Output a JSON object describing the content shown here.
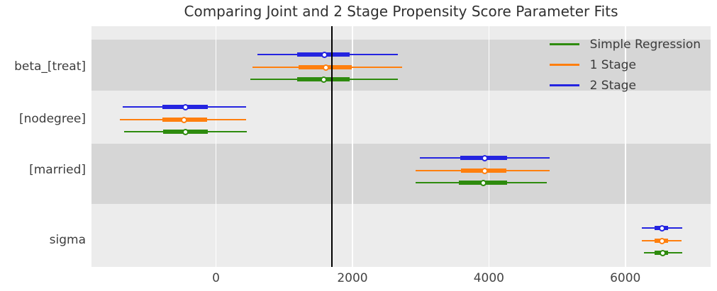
{
  "title": "Comparing Joint and 2 Stage Propensity Score Parameter Fits",
  "legend": [
    {
      "label": "Simple Regression",
      "color": "#2e8b0e"
    },
    {
      "label": "1 Stage",
      "color": "#ff7f0e"
    },
    {
      "label": "2 Stage",
      "color": "#2424e0"
    }
  ],
  "colors": {
    "plot_bg": "#ececec",
    "band_dark": "#d6d6d6",
    "gridline": "#ffffff",
    "reference_line": "#000000"
  },
  "chart_data": {
    "type": "forest",
    "subtype": "point estimates with 50% (thick) and 94% (thin) credible intervals",
    "title": "Comparing Joint and 2 Stage Propensity Score Parameter Fits",
    "xlabel": "",
    "ylabel": "",
    "xlim": [
      -1825,
      7250
    ],
    "x_ticks": [
      0,
      2000,
      4000,
      6000
    ],
    "reference_line_x": 1700,
    "grid": "white vertical gridlines over alternating gray bands",
    "legend_position": "upper right",
    "series_order_top_to_bottom": [
      "2 Stage",
      "1 Stage",
      "Simple Regression"
    ],
    "parameters": [
      {
        "name": "beta_[treat]",
        "band": "dark",
        "estimates": [
          {
            "series": "2 Stage",
            "point": 1590,
            "interval_thick": [
              1190,
              1960
            ],
            "interval_thin": [
              610,
              2670
            ]
          },
          {
            "series": "1 Stage",
            "point": 1610,
            "interval_thick": [
              1210,
              1990
            ],
            "interval_thin": [
              530,
              2730
            ]
          },
          {
            "series": "Simple Regression",
            "point": 1580,
            "interval_thick": [
              1190,
              1960
            ],
            "interval_thin": [
              500,
              2670
            ]
          }
        ]
      },
      {
        "name": "[nodegree]",
        "band": "light",
        "estimates": [
          {
            "series": "2 Stage",
            "point": -450,
            "interval_thick": [
              -790,
              -120
            ],
            "interval_thin": [
              -1370,
              440
            ]
          },
          {
            "series": "1 Stage",
            "point": -470,
            "interval_thick": [
              -790,
              -130
            ],
            "interval_thin": [
              -1410,
              440
            ]
          },
          {
            "series": "Simple Regression",
            "point": -450,
            "interval_thick": [
              -780,
              -120
            ],
            "interval_thin": [
              -1350,
              450
            ]
          }
        ]
      },
      {
        "name": "[married]",
        "band": "dark",
        "estimates": [
          {
            "series": "2 Stage",
            "point": 3940,
            "interval_thick": [
              3580,
              4270
            ],
            "interval_thin": [
              2990,
              4890
            ]
          },
          {
            "series": "1 Stage",
            "point": 3940,
            "interval_thick": [
              3590,
              4260
            ],
            "interval_thin": [
              2930,
              4890
            ]
          },
          {
            "series": "Simple Regression",
            "point": 3915,
            "interval_thick": [
              3560,
              4270
            ],
            "interval_thin": [
              2930,
              4850
            ]
          }
        ]
      },
      {
        "name": "sigma",
        "band": "light",
        "estimates": [
          {
            "series": "2 Stage",
            "point": 6540,
            "interval_thick": [
              6430,
              6630
            ],
            "interval_thin": [
              6240,
              6830
            ]
          },
          {
            "series": "1 Stage",
            "point": 6540,
            "interval_thick": [
              6430,
              6630
            ],
            "interval_thin": [
              6240,
              6820
            ]
          },
          {
            "series": "Simple Regression",
            "point": 6545,
            "interval_thick": [
              6425,
              6630
            ],
            "interval_thin": [
              6270,
              6835
            ]
          }
        ]
      }
    ]
  }
}
